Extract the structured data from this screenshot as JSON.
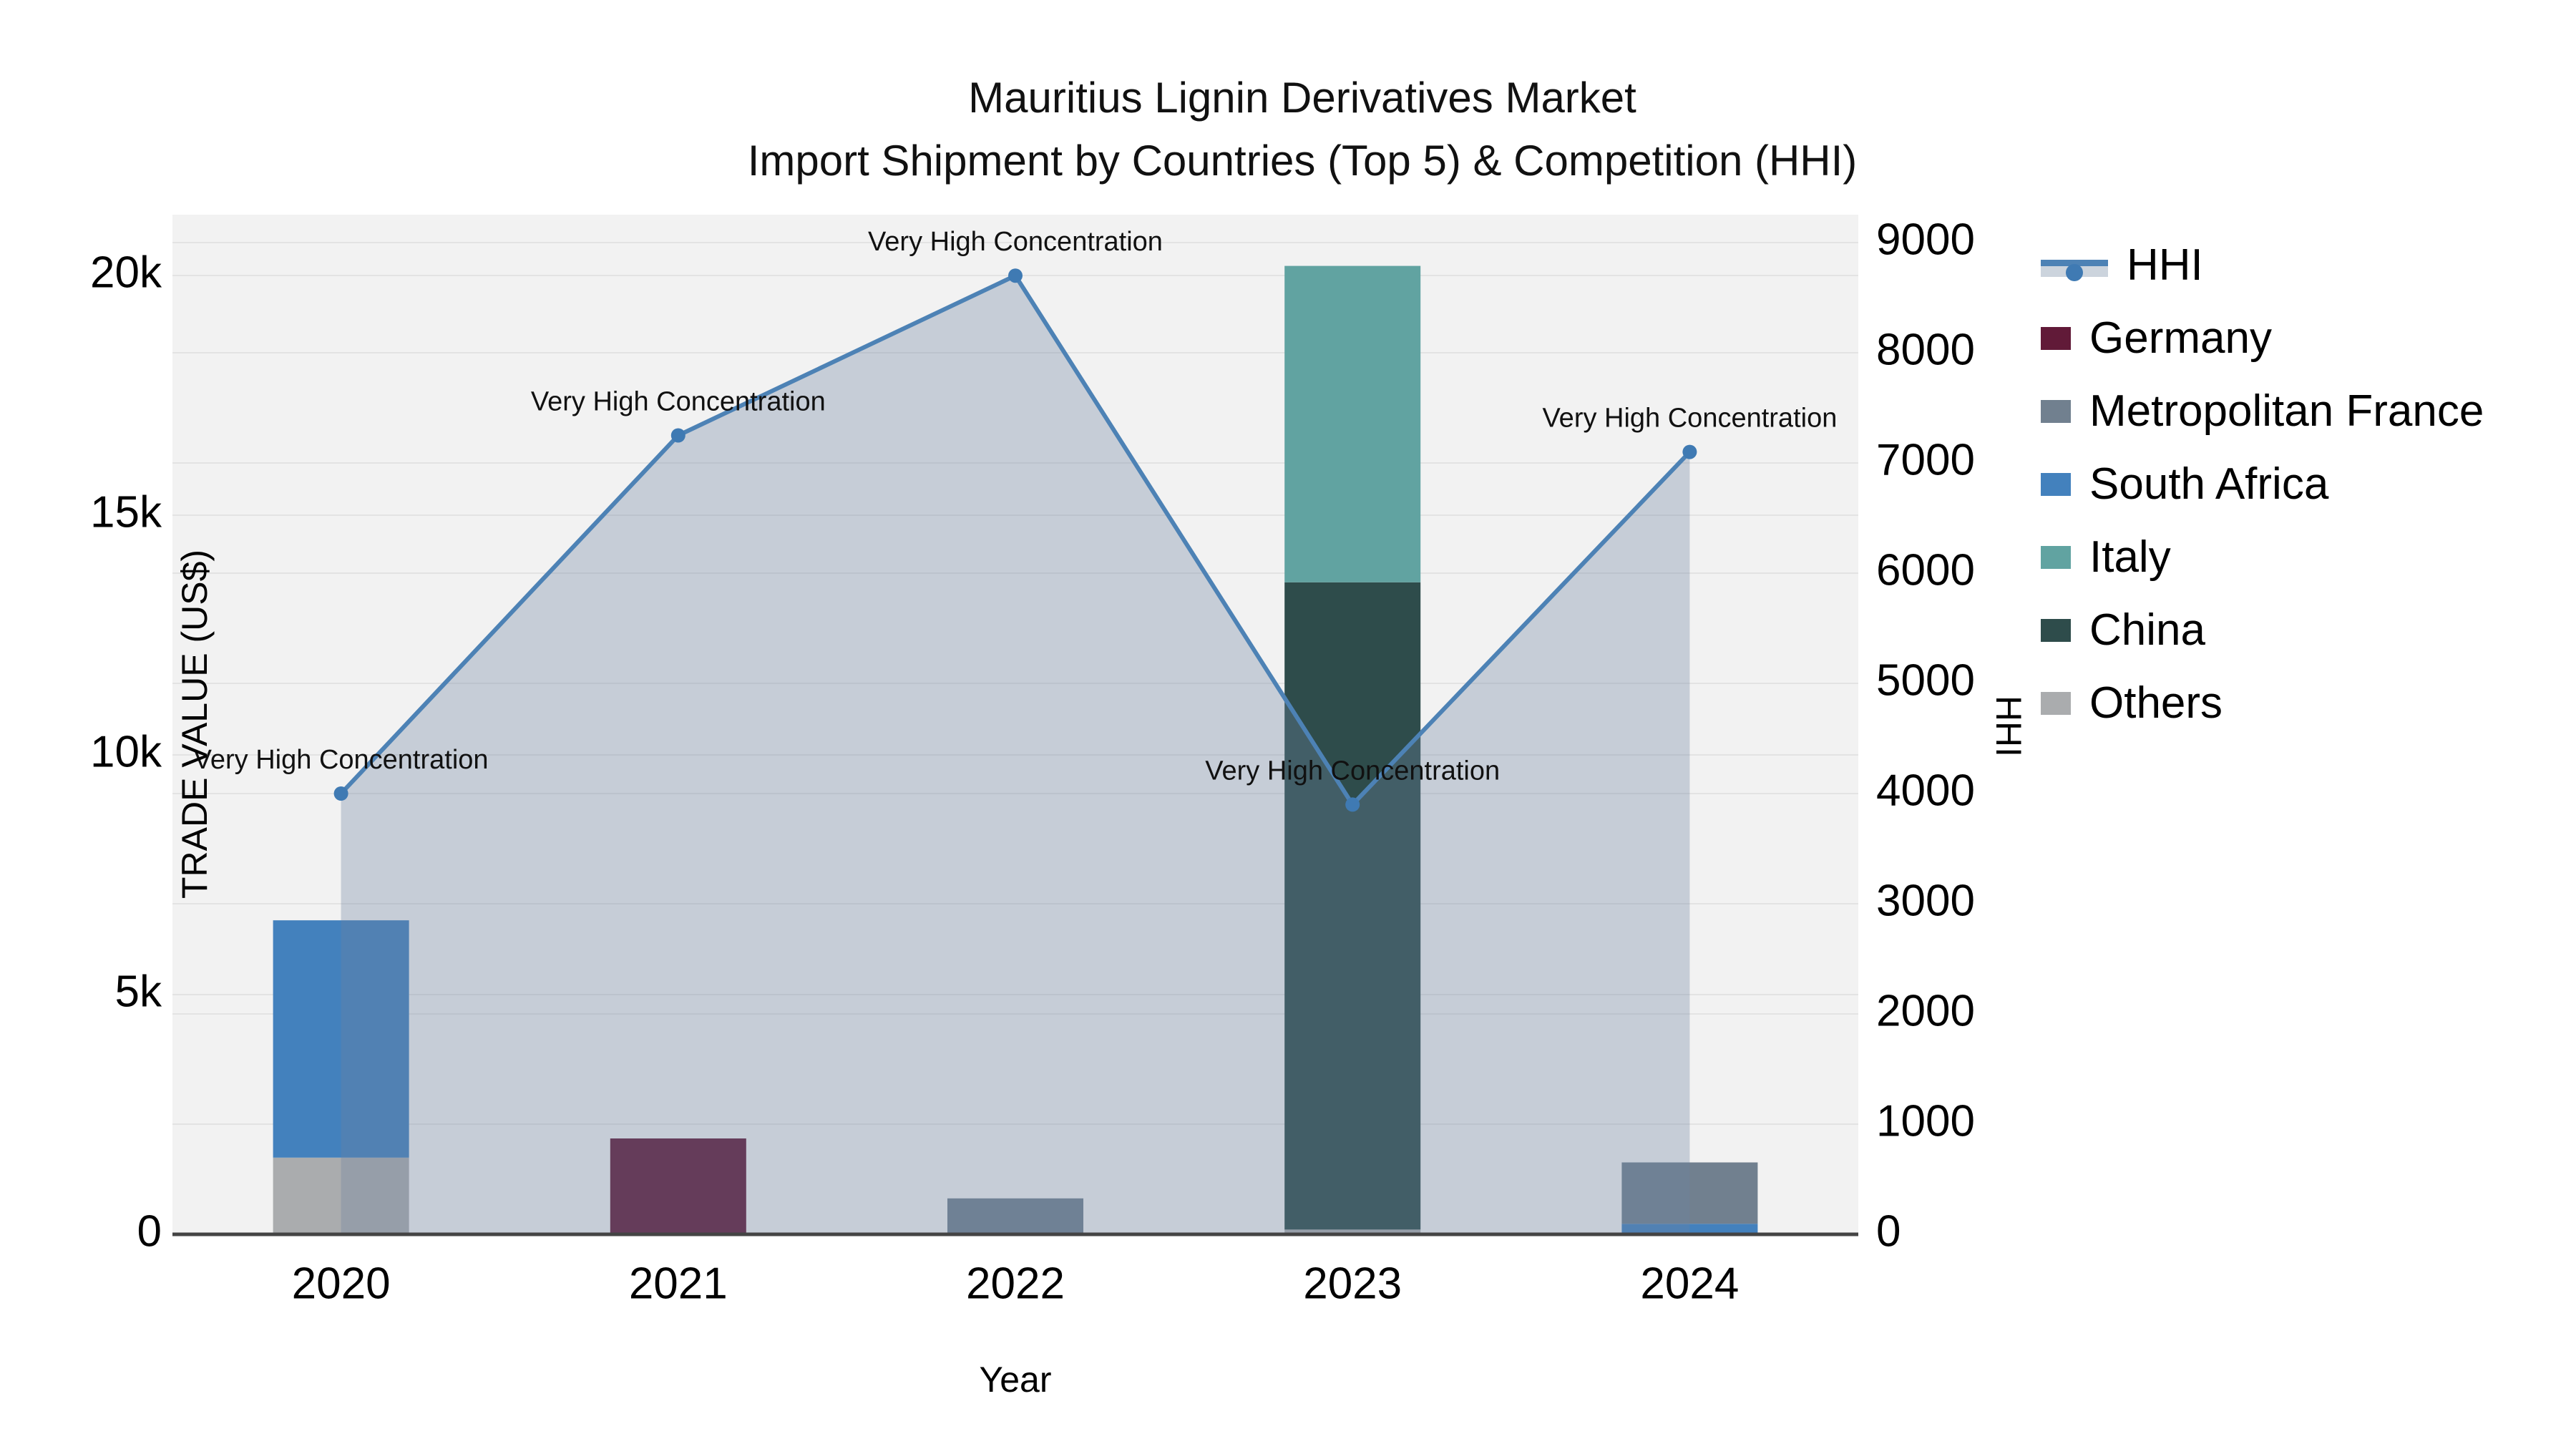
{
  "chart_data": {
    "type": "combo-stacked-bar-line-area",
    "title": "Mauritius Lignin Derivatives Market",
    "subtitle": "Import Shipment by Countries (Top 5) & Competition (HHI)",
    "categories": [
      "2020",
      "2021",
      "2022",
      "2023",
      "2024"
    ],
    "xlabel": "Year",
    "y_left": {
      "label": "TRADE VALUE (US$)",
      "tick_values": [
        0,
        5000,
        10000,
        15000,
        20000
      ],
      "tick_labels": [
        "0",
        "5k",
        "10k",
        "15k",
        "20k"
      ],
      "range": [
        0,
        21270
      ],
      "grid": true
    },
    "y_right": {
      "label": "HHI",
      "tick_values": [
        0,
        1000,
        2000,
        3000,
        4000,
        5000,
        6000,
        7000,
        8000,
        9000
      ],
      "tick_labels": [
        "0",
        "1000",
        "2000",
        "3000",
        "4000",
        "5000",
        "6000",
        "7000",
        "8000",
        "9000"
      ],
      "range": [
        0,
        9253
      ],
      "grid": true
    },
    "bar_series": [
      {
        "name": "Germany",
        "color": "#611a38",
        "values": [
          0,
          2000,
          0,
          0,
          0
        ]
      },
      {
        "name": "Metropolitan France",
        "color": "#71808f",
        "values": [
          0,
          0,
          750,
          0,
          1280
        ]
      },
      {
        "name": "South Africa",
        "color": "#4381bd",
        "values": [
          4950,
          0,
          0,
          0,
          220
        ]
      },
      {
        "name": "Italy",
        "color": "#61a3a1",
        "values": [
          0,
          0,
          0,
          6600,
          0
        ]
      },
      {
        "name": "China",
        "color": "#2e4c4b",
        "values": [
          0,
          0,
          0,
          13500,
          0
        ]
      },
      {
        "name": "Others",
        "color": "#aaacae",
        "values": [
          1600,
          0,
          0,
          100,
          0
        ]
      }
    ],
    "stack_order_bottom_to_top": [
      "Others",
      "China",
      "Italy",
      "South Africa",
      "Metropolitan France",
      "Germany"
    ],
    "line_series": {
      "name": "HHI",
      "color": "#4d82b5",
      "marker_color": "#3f7ab3",
      "area_fill": "rgba(109,131,161,0.33)",
      "values": [
        4000,
        7250,
        8700,
        3900,
        7100
      ]
    },
    "annotations": [
      {
        "category": "2020",
        "text": "Very High Concentration"
      },
      {
        "category": "2021",
        "text": "Very High Concentration"
      },
      {
        "category": "2022",
        "text": "Very High Concentration"
      },
      {
        "category": "2023",
        "text": "Very High Concentration"
      },
      {
        "category": "2024",
        "text": "Very High Concentration"
      }
    ],
    "legend": {
      "position": "right",
      "entries": [
        "HHI",
        "Germany",
        "Metropolitan France",
        "South Africa",
        "Italy",
        "China",
        "Others"
      ]
    },
    "colors": {
      "plot_background": "#f2f2f2",
      "page_background": "#ffffff",
      "gridline": "#e3e3e3",
      "axis_line": "#444444",
      "text": "#000000"
    }
  }
}
